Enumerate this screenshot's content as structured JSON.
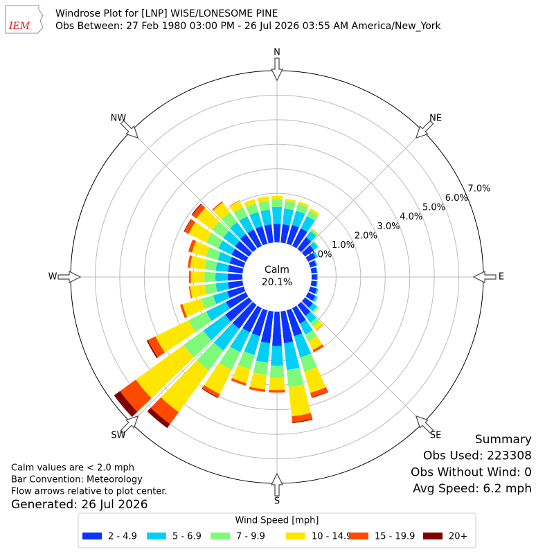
{
  "chart_data": {
    "type": "windrose",
    "logo": "IEM",
    "title": "Windrose Plot for [LNP] WISE/LONESOME PINE",
    "subtitle": "Obs Between: 27 Feb 1980 03:00 PM - 26 Jul 2026 03:55 AM America/New_York",
    "x": [
      0,
      10,
      20,
      30,
      40,
      50,
      60,
      70,
      80,
      90,
      100,
      110,
      120,
      130,
      140,
      150,
      160,
      170,
      180,
      190,
      200,
      210,
      220,
      230,
      240,
      250,
      260,
      270,
      280,
      290,
      300,
      310,
      320,
      330,
      340,
      350
    ],
    "xticks": [
      {
        "value": 0,
        "label": "N"
      },
      {
        "value": 45,
        "label": "NE"
      },
      {
        "value": 90,
        "label": "E"
      },
      {
        "value": 135,
        "label": "SE"
      },
      {
        "value": 180,
        "label": "S"
      },
      {
        "value": 225,
        "label": "SW"
      },
      {
        "value": 270,
        "label": "W"
      },
      {
        "value": 315,
        "label": "NW"
      }
    ],
    "ylim": [
      0,
      7
    ],
    "yticks": [
      {
        "value": 0,
        "label": "0.0%"
      },
      {
        "value": 1,
        "label": "1.0%"
      },
      {
        "value": 2,
        "label": "2.0%"
      },
      {
        "value": 3,
        "label": "3.0%"
      },
      {
        "value": 4,
        "label": "4.0%"
      },
      {
        "value": 5,
        "label": "5.0%"
      },
      {
        "value": 6,
        "label": "6.0%"
      },
      {
        "value": 7,
        "label": "7.0%"
      }
    ],
    "calm": {
      "label": "Calm",
      "value": 20.1,
      "value_label": "20.1%"
    },
    "legend_title": "Wind Speed [mph]",
    "series": [
      {
        "name": "2 - 4.9",
        "color": "#0a33ff",
        "values": [
          0.75,
          0.75,
          0.8,
          0.8,
          0.6,
          0.45,
          0.35,
          0.25,
          0.22,
          0.22,
          0.22,
          0.28,
          0.33,
          0.4,
          0.55,
          0.7,
          1.1,
          1.3,
          1.4,
          1.3,
          1.1,
          1.1,
          1.2,
          1.2,
          0.9,
          0.7,
          0.6,
          0.6,
          0.6,
          0.6,
          0.65,
          0.7,
          0.75,
          0.75,
          0.75,
          0.75
        ]
      },
      {
        "name": "5 - 6.9",
        "color": "#00d0f5",
        "values": [
          0.7,
          0.65,
          0.6,
          0.55,
          0.3,
          0.2,
          0.1,
          0.05,
          0.03,
          0.03,
          0.04,
          0.07,
          0.1,
          0.2,
          0.35,
          0.5,
          0.9,
          1.1,
          0.8,
          0.8,
          0.8,
          0.9,
          1.1,
          1.1,
          0.9,
          0.6,
          0.5,
          0.5,
          0.5,
          0.5,
          0.6,
          0.6,
          0.6,
          0.6,
          0.6,
          0.6
        ]
      },
      {
        "name": "7 - 9.9",
        "color": "#7dfa7a",
        "values": [
          0.3,
          0.3,
          0.3,
          0.25,
          0.1,
          0.05,
          0,
          0,
          0,
          0,
          0,
          0,
          0.02,
          0.08,
          0.2,
          0.3,
          0.6,
          0.7,
          0.5,
          0.5,
          0.6,
          0.8,
          1.0,
          1.0,
          0.8,
          0.5,
          0.45,
          0.45,
          0.45,
          0.5,
          0.55,
          0.55,
          0.5,
          0.4,
          0.35,
          0.35
        ]
      },
      {
        "name": "10 - 14.9",
        "color": "#ffe600",
        "values": [
          0.15,
          0.1,
          0.1,
          0.1,
          0.03,
          0,
          0,
          0,
          0,
          0,
          0,
          0,
          0,
          0.02,
          0.18,
          0.4,
          0.9,
          1.2,
          0.5,
          0.6,
          0.6,
          1.1,
          2.1,
          2.4,
          1.5,
          0.8,
          0.6,
          0.55,
          0.6,
          0.6,
          0.8,
          0.8,
          0.5,
          0.3,
          0.2,
          0.2
        ]
      },
      {
        "name": "15 - 19.9",
        "color": "#ff4a00",
        "values": [
          0,
          0,
          0,
          0,
          0,
          0,
          0,
          0,
          0,
          0,
          0,
          0,
          0,
          0,
          0.02,
          0.1,
          0.2,
          0.25,
          0.1,
          0.1,
          0.1,
          0.15,
          0.6,
          0.8,
          0.35,
          0.1,
          0.05,
          0.08,
          0.1,
          0.15,
          0.2,
          0.22,
          0.05,
          0.02,
          0,
          0
        ]
      },
      {
        "name": "20+",
        "color": "#7f0000",
        "values": [
          0,
          0,
          0,
          0,
          0,
          0,
          0,
          0,
          0,
          0,
          0,
          0,
          0,
          0,
          0,
          0,
          0.02,
          0.03,
          0,
          0,
          0,
          0.03,
          0.2,
          0.3,
          0.05,
          0,
          0,
          0,
          0,
          0,
          0.02,
          0.03,
          0,
          0,
          0,
          0
        ]
      }
    ],
    "summary": [
      "Summary",
      "Obs Used: 223308",
      "Obs Without Wind: 0",
      "Avg Speed: 6.2 mph"
    ],
    "notes": [
      "Calm values are < 2.0 mph",
      "Bar Convention: Meteorology",
      "Flow arrows relative to plot center."
    ],
    "generated": "Generated: 26 Jul 2026"
  }
}
